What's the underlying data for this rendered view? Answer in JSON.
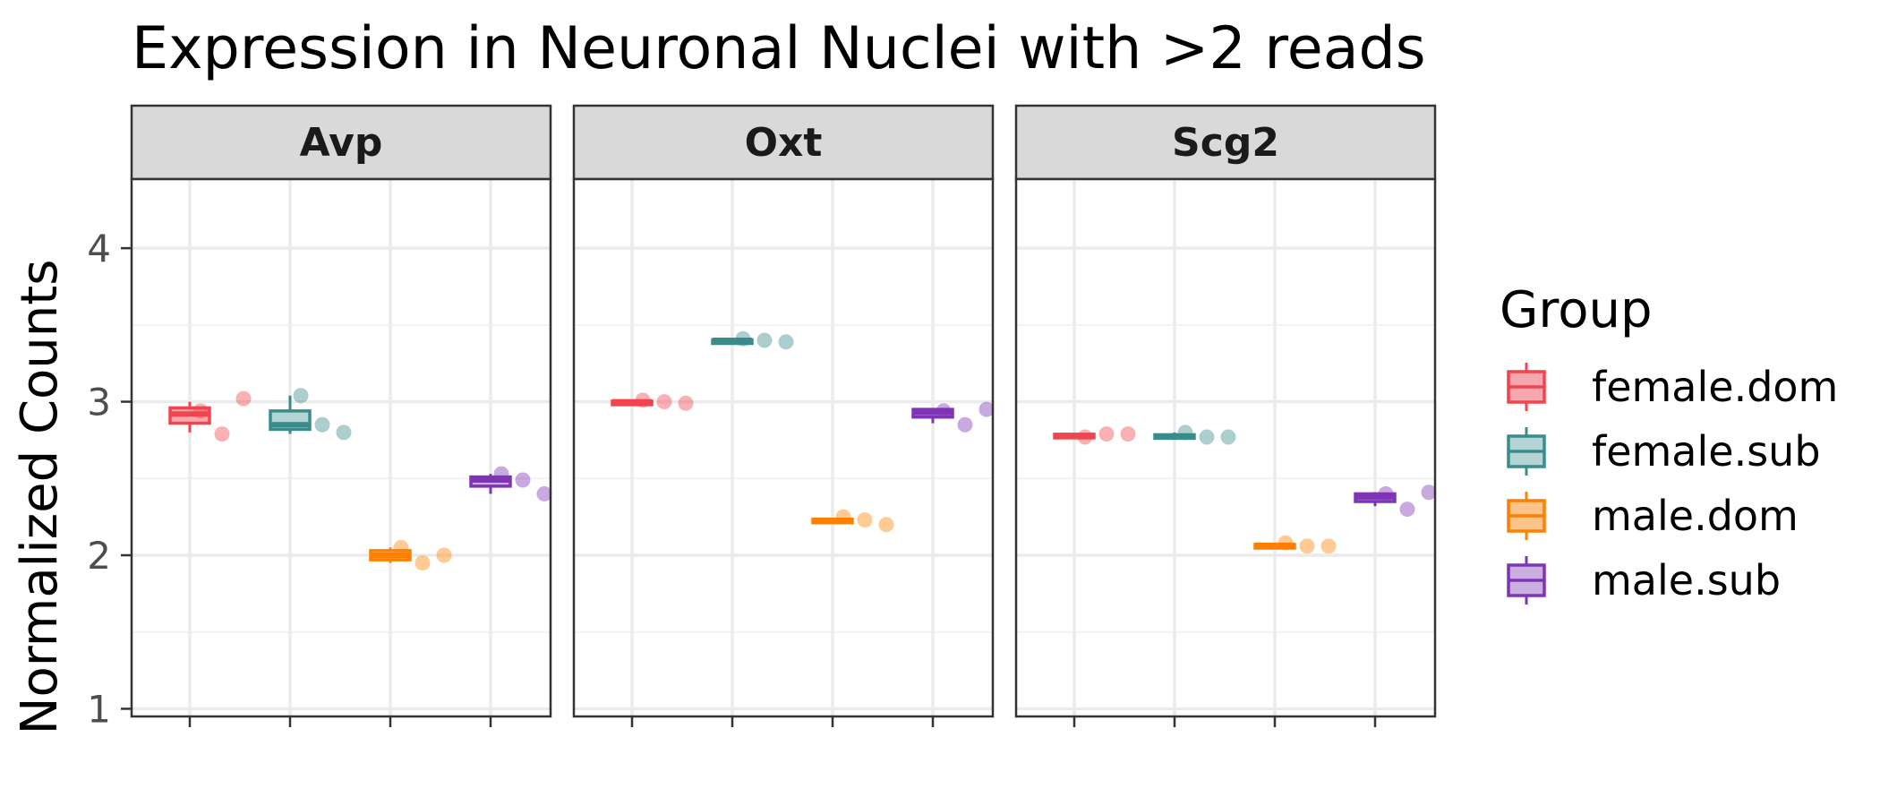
{
  "chart_data": {
    "type": "box",
    "title": "Expression in Neuronal Nuclei with >2 reads",
    "ylabel": "Normalized Counts",
    "xlabel": "",
    "ylim": [
      0.95,
      4.45
    ],
    "yticks": [
      1,
      2,
      3,
      4
    ],
    "grid": true,
    "legend": {
      "title": "Group",
      "position": "right"
    },
    "groups": [
      {
        "name": "female.dom",
        "color": "#F2444F",
        "fill": "#F7A8AE"
      },
      {
        "name": "female.sub",
        "color": "#3A8B8C",
        "fill": "#B5D4D4"
      },
      {
        "name": "male.dom",
        "color": "#FF8000",
        "fill": "#FFC48A"
      },
      {
        "name": "male.sub",
        "color": "#7E35B5",
        "fill": "#CBAEE0"
      }
    ],
    "panels": [
      {
        "label": "Avp",
        "boxes": [
          {
            "group": "female.dom",
            "min": 2.8,
            "q1": 2.86,
            "median": 2.92,
            "q3": 2.96,
            "max": 3.0,
            "points": [
              2.94,
              2.79,
              3.02
            ]
          },
          {
            "group": "female.sub",
            "min": 2.79,
            "q1": 2.82,
            "median": 2.85,
            "q3": 2.94,
            "max": 3.04,
            "points": [
              3.04,
              2.85,
              2.8
            ]
          },
          {
            "group": "male.dom",
            "min": 1.95,
            "q1": 1.97,
            "median": 2.0,
            "q3": 2.03,
            "max": 2.05,
            "points": [
              2.05,
              1.95,
              2.0
            ]
          },
          {
            "group": "male.sub",
            "min": 2.4,
            "q1": 2.45,
            "median": 2.49,
            "q3": 2.51,
            "max": 2.53,
            "points": [
              2.53,
              2.49,
              2.4
            ]
          }
        ]
      },
      {
        "label": "Oxt",
        "boxes": [
          {
            "group": "female.dom",
            "min": 2.995,
            "q1": 2.998,
            "median": 3.0,
            "q3": 3.004,
            "max": 3.008,
            "points": [
              3.01,
              3.0,
              2.99
            ]
          },
          {
            "group": "female.sub",
            "min": 3.395,
            "q1": 3.398,
            "median": 3.4,
            "q3": 3.403,
            "max": 3.406,
            "points": [
              3.41,
              3.4,
              3.39
            ]
          },
          {
            "group": "male.dom",
            "min": 2.21,
            "q1": 2.215,
            "median": 2.225,
            "q3": 2.235,
            "max": 2.245,
            "points": [
              2.25,
              2.23,
              2.2
            ]
          },
          {
            "group": "male.sub",
            "min": 2.86,
            "q1": 2.9,
            "median": 2.93,
            "q3": 2.95,
            "max": 2.96,
            "points": [
              2.94,
              2.85,
              2.95
            ]
          }
        ]
      },
      {
        "label": "Scg2",
        "boxes": [
          {
            "group": "female.dom",
            "min": 2.77,
            "q1": 2.775,
            "median": 2.78,
            "q3": 2.788,
            "max": 2.795,
            "points": [
              2.77,
              2.79,
              2.79
            ]
          },
          {
            "group": "female.sub",
            "min": 2.765,
            "q1": 2.77,
            "median": 2.775,
            "q3": 2.785,
            "max": 2.8,
            "points": [
              2.8,
              2.77,
              2.77
            ]
          },
          {
            "group": "male.dom",
            "min": 2.055,
            "q1": 2.06,
            "median": 2.065,
            "q3": 2.07,
            "max": 2.08,
            "points": [
              2.08,
              2.06,
              2.06
            ]
          },
          {
            "group": "male.sub",
            "min": 2.32,
            "q1": 2.35,
            "median": 2.38,
            "q3": 2.4,
            "max": 2.41,
            "points": [
              2.4,
              2.3,
              2.41
            ]
          }
        ]
      }
    ]
  }
}
